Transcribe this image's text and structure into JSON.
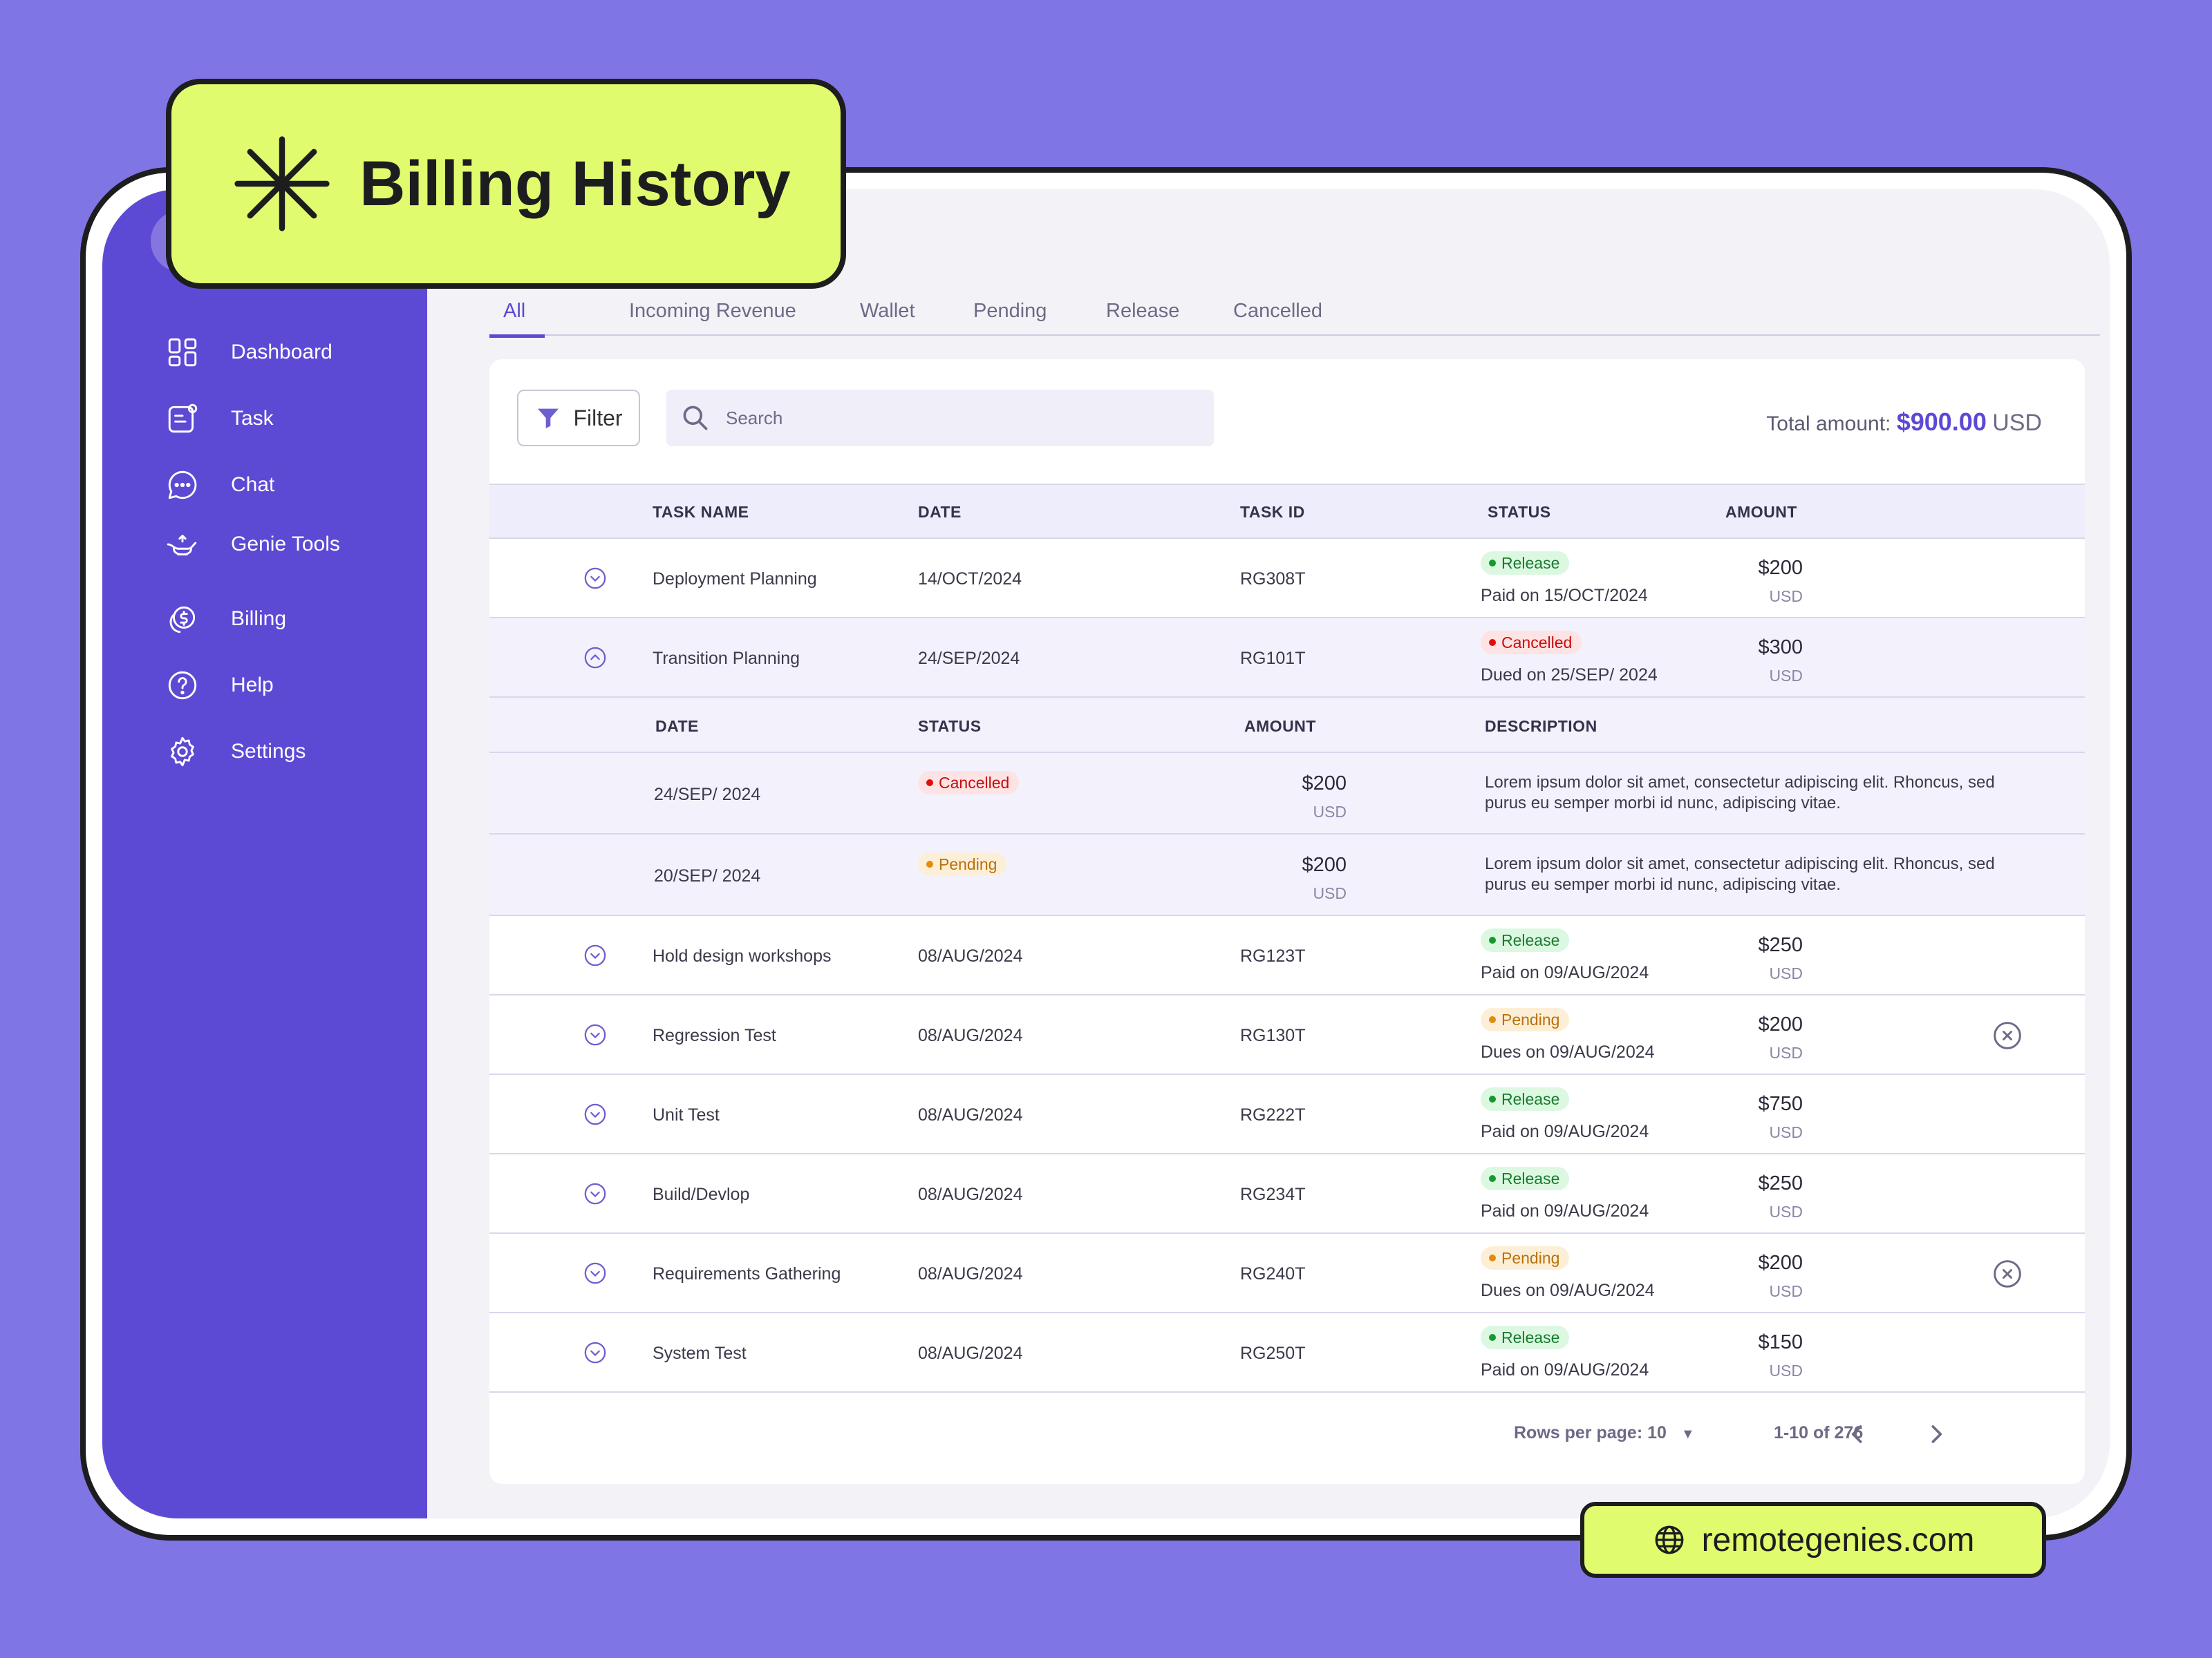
{
  "title": "Billing History",
  "url_badge": "remotegenies.com",
  "sidebar": {
    "items": [
      {
        "label": "Dashboard",
        "icon": "grid-icon"
      },
      {
        "label": "Task",
        "icon": "task-icon"
      },
      {
        "label": "Chat",
        "icon": "chat-icon"
      },
      {
        "label": "Genie Tools",
        "icon": "genie-lamp-icon"
      },
      {
        "label": "Billing",
        "icon": "coins-icon"
      },
      {
        "label": "Help",
        "icon": "help-icon"
      },
      {
        "label": "Settings",
        "icon": "gear-icon"
      }
    ]
  },
  "tabs": [
    "All",
    "Incoming Revenue",
    "Wallet",
    "Pending",
    "Release",
    "Cancelled"
  ],
  "active_tab": "All",
  "toolbar": {
    "filter_label": "Filter",
    "search_placeholder": "Search",
    "total_label": "Total amount:",
    "total_amount": "$900.00",
    "total_currency": "USD"
  },
  "table": {
    "headers": [
      "TASK NAME",
      "DATE",
      "TASK ID",
      "STATUS",
      "AMOUNT"
    ],
    "rows": [
      {
        "task": "Deployment Planning",
        "date": "14/OCT/2024",
        "id": "RG308T",
        "status": "Release",
        "status_note": "Paid on 15/OCT/2024",
        "amount": "$200",
        "currency": "USD"
      },
      {
        "task": "Transition Planning",
        "date": "24/SEP/2024",
        "id": "RG101T",
        "status": "Cancelled",
        "status_note": "Dued on 25/SEP/ 2024",
        "amount": "$300",
        "currency": "USD"
      },
      {
        "task": "Hold design workshops",
        "date": "08/AUG/2024",
        "id": "RG123T",
        "status": "Release",
        "status_note": "Paid on 09/AUG/2024",
        "amount": "$250",
        "currency": "USD"
      },
      {
        "task": "Regression Test",
        "date": "08/AUG/2024",
        "id": "RG130T",
        "status": "Pending",
        "status_note": "Dues on 09/AUG/2024",
        "amount": "$200",
        "currency": "USD"
      },
      {
        "task": "Unit Test",
        "date": "08/AUG/2024",
        "id": "RG222T",
        "status": "Release",
        "status_note": "Paid on 09/AUG/2024",
        "amount": "$750",
        "currency": "USD"
      },
      {
        "task": "Build/Devlop",
        "date": "08/AUG/2024",
        "id": "RG234T",
        "status": "Release",
        "status_note": "Paid on 09/AUG/2024",
        "amount": "$250",
        "currency": "USD"
      },
      {
        "task": "Requirements Gathering",
        "date": "08/AUG/2024",
        "id": "RG240T",
        "status": "Pending",
        "status_note": "Dues on 09/AUG/2024",
        "amount": "$200",
        "currency": "USD"
      },
      {
        "task": "System Test",
        "date": "08/AUG/2024",
        "id": "RG250T",
        "status": "Release",
        "status_note": "Paid on 09/AUG/2024",
        "amount": "$150",
        "currency": "USD"
      }
    ],
    "expanded": {
      "headers": [
        "DATE",
        "STATUS",
        "AMOUNT",
        "DESCRIPTION"
      ],
      "rows": [
        {
          "date": "24/SEP/ 2024",
          "status": "Cancelled",
          "amount": "$200",
          "currency": "USD",
          "description": "Lorem ipsum dolor sit amet, consectetur adipiscing elit. Rhoncus, sed purus eu semper morbi id nunc, adipiscing vitae."
        },
        {
          "date": "20/SEP/ 2024",
          "status": "Pending",
          "amount": "$200",
          "currency": "USD",
          "description": "Lorem ipsum dolor sit amet, consectetur adipiscing elit. Rhoncus, sed purus eu semper morbi id nunc, adipiscing vitae."
        }
      ]
    }
  },
  "pagination": {
    "rows_per_page": "Rows per page: 10",
    "range": "1-10 of 276"
  },
  "colors": {
    "background": "#8075e4",
    "sidebar": "#5c49d4",
    "sticker": "#e0fc6e",
    "accent": "#5c49d4"
  }
}
